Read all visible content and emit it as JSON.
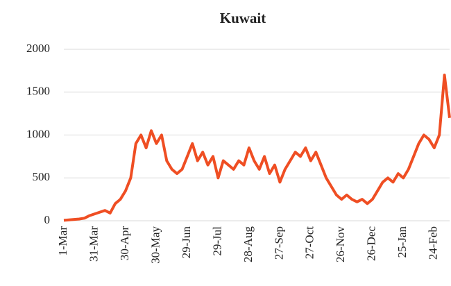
{
  "chart_data": {
    "type": "line",
    "title": "Kuwait",
    "categories": [
      "1-Mar",
      null,
      null,
      null,
      null,
      null,
      "31-Mar",
      null,
      null,
      null,
      null,
      null,
      "30-Apr",
      null,
      null,
      null,
      null,
      null,
      "30-May",
      null,
      null,
      null,
      null,
      null,
      "29-Jun",
      null,
      null,
      null,
      null,
      null,
      "29-Jul",
      null,
      null,
      null,
      null,
      null,
      "28-Aug",
      null,
      null,
      null,
      null,
      null,
      "27-Sep",
      null,
      null,
      null,
      null,
      null,
      "27-Oct",
      null,
      null,
      null,
      null,
      null,
      "26-Nov",
      null,
      null,
      null,
      null,
      null,
      "26-Dec",
      null,
      null,
      null,
      null,
      null,
      "25-Jan",
      null,
      null,
      null,
      null,
      null,
      "24-Feb",
      null,
      null,
      null
    ],
    "values": [
      5,
      10,
      15,
      20,
      30,
      60,
      80,
      100,
      120,
      90,
      200,
      250,
      350,
      500,
      900,
      1000,
      850,
      1050,
      900,
      1000,
      700,
      600,
      550,
      600,
      750,
      900,
      700,
      800,
      650,
      750,
      500,
      700,
      650,
      600,
      700,
      650,
      850,
      700,
      600,
      750,
      550,
      650,
      450,
      600,
      700,
      800,
      750,
      850,
      700,
      800,
      650,
      500,
      400,
      300,
      250,
      300,
      250,
      220,
      250,
      200,
      250,
      350,
      450,
      500,
      450,
      550,
      500,
      600,
      750,
      900,
      1000,
      950,
      850,
      1000,
      1700,
      1200
    ],
    "color": "#ef4e23",
    "ylim": [
      0,
      2000
    ],
    "yticks": [
      0,
      500,
      1000,
      1500,
      2000
    ],
    "grid": true
  }
}
